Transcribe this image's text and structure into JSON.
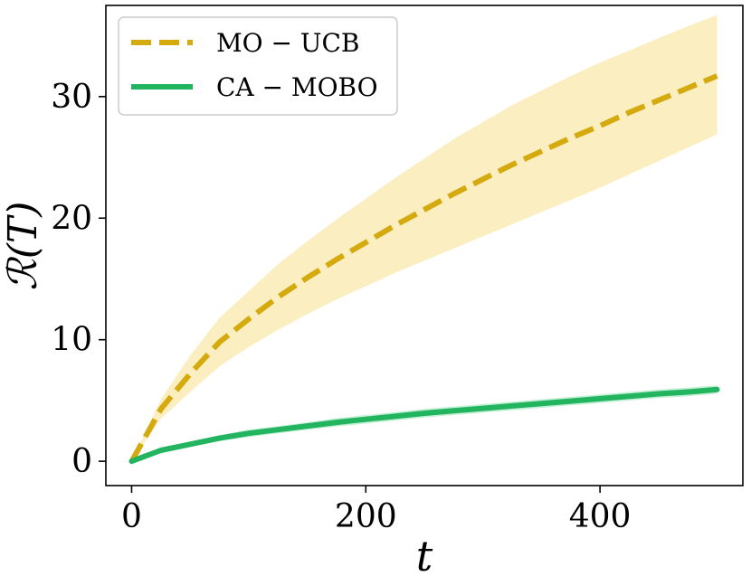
{
  "chart_data": {
    "type": "line",
    "title": "",
    "xlabel": "t",
    "ylabel": "ℛ(T)",
    "xlim": [
      -22,
      522
    ],
    "ylim": [
      -2,
      37.5
    ],
    "xticks": [
      0,
      200,
      400
    ],
    "xtick_labels": [
      "0",
      "200",
      "400"
    ],
    "yticks": [
      0,
      10,
      20,
      30
    ],
    "ytick_labels": [
      "0",
      "10",
      "20",
      "30"
    ],
    "grid": false,
    "legend_position": "top-left",
    "x": [
      0,
      25,
      50,
      75,
      100,
      125,
      150,
      175,
      200,
      225,
      250,
      275,
      300,
      325,
      350,
      375,
      400,
      425,
      450,
      475,
      500
    ],
    "series": [
      {
        "name": "MO − UCB",
        "style": "dashed",
        "color": "#d4aa0e",
        "band_color": "#fbeec0",
        "values": [
          0,
          4.3,
          7.2,
          9.8,
          11.7,
          13.5,
          15.1,
          16.6,
          18.0,
          19.4,
          20.7,
          22.0,
          23.2,
          24.4,
          25.5,
          26.6,
          27.6,
          28.7,
          29.7,
          30.7,
          31.7
        ],
        "lower": [
          0,
          3.5,
          5.7,
          7.8,
          9.4,
          10.8,
          12.1,
          13.3,
          14.4,
          15.5,
          16.5,
          17.5,
          18.5,
          19.5,
          20.5,
          21.5,
          22.5,
          23.6,
          24.7,
          25.8,
          26.9
        ],
        "upper": [
          0,
          5.1,
          8.7,
          11.8,
          14.0,
          16.2,
          18.1,
          19.9,
          21.6,
          23.3,
          24.9,
          26.5,
          27.9,
          29.3,
          30.5,
          31.7,
          32.8,
          33.8,
          34.8,
          35.8,
          36.7
        ]
      },
      {
        "name": "CA − MOBO",
        "style": "solid",
        "color": "#22b45e",
        "band_color": "#c3efd5",
        "values": [
          0,
          0.9,
          1.4,
          1.9,
          2.3,
          2.6,
          2.9,
          3.2,
          3.45,
          3.7,
          3.95,
          4.15,
          4.35,
          4.55,
          4.75,
          4.95,
          5.15,
          5.35,
          5.55,
          5.7,
          5.9
        ],
        "lower": [
          0,
          0.75,
          1.2,
          1.65,
          2.0,
          2.3,
          2.6,
          2.85,
          3.1,
          3.35,
          3.6,
          3.8,
          4.0,
          4.2,
          4.4,
          4.6,
          4.8,
          5.0,
          5.2,
          5.35,
          5.55
        ],
        "upper": [
          0,
          1.05,
          1.6,
          2.15,
          2.6,
          2.9,
          3.2,
          3.55,
          3.8,
          4.05,
          4.3,
          4.5,
          4.7,
          4.9,
          5.1,
          5.3,
          5.5,
          5.7,
          5.9,
          6.05,
          6.25
        ]
      }
    ]
  }
}
